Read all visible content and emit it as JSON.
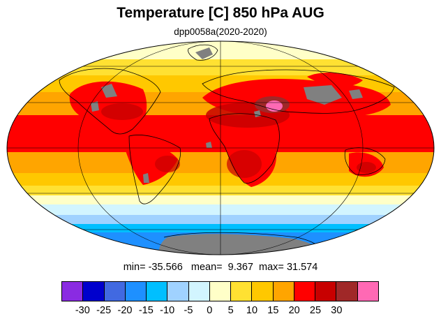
{
  "title": "Temperature [C] 850 hPa AUG",
  "subtitle": "dpp0058a(2020-2020)",
  "stats": {
    "min_label": "min=",
    "min": "-35.566",
    "mean_label": "mean=",
    "mean": "9.367",
    "max_label": "max=",
    "max": "31.574"
  },
  "colorbar": {
    "colors": [
      "#8a2be2",
      "#0000cd",
      "#4169e1",
      "#1e90ff",
      "#00bfff",
      "#a0d2ff",
      "#d2f5ff",
      "#ffffc8",
      "#ffe132",
      "#ffc800",
      "#ffa500",
      "#ff0000",
      "#c80000",
      "#a02828",
      "#ff69b4"
    ],
    "labels": [
      "-30",
      "-25",
      "-20",
      "-15",
      "-10",
      "-5",
      "0",
      "5",
      "10",
      "15",
      "20",
      "25",
      "30"
    ]
  },
  "colors": {
    "land_mask": "#808080",
    "coastline": "#000000",
    "gridline": "#000000"
  }
}
